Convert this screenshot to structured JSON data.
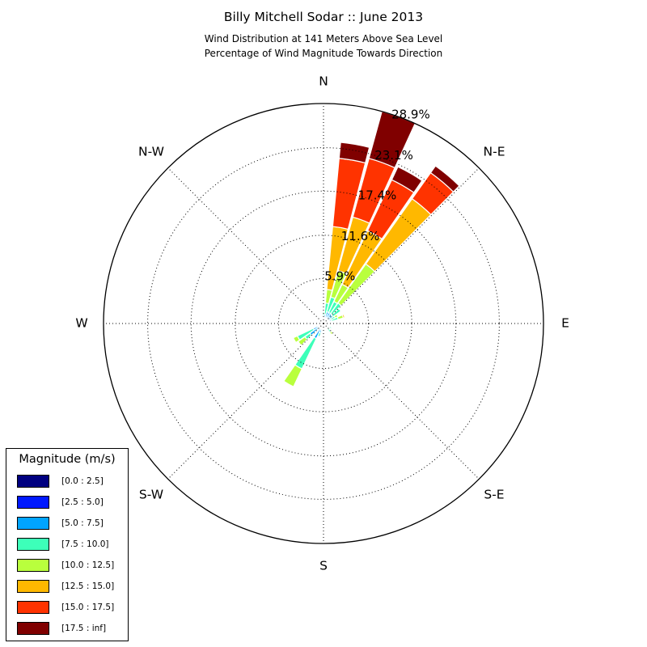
{
  "title": "Billy Mitchell Sodar :: June 2013",
  "subtitle_line1": "Wind Distribution at 141 Meters Above Sea Level",
  "subtitle_line2": "Percentage of Wind Magnitude Towards Direction",
  "chart_data": {
    "type": "windrose",
    "title": "Billy Mitchell Sodar :: June 2013",
    "subtitle": [
      "Wind Distribution at 141 Meters Above Sea Level",
      "Percentage of Wind Magnitude Towards Direction"
    ],
    "units": "percent",
    "directions": [
      "N",
      "N-E",
      "E",
      "S-E",
      "S",
      "S-W",
      "W",
      "N-W"
    ],
    "radial_ticks": [
      5.9,
      11.6,
      17.4,
      23.1,
      28.9
    ],
    "radial_tick_labels": [
      "5.9%",
      "11.6%",
      "17.4%",
      "23.1%",
      "28.9%"
    ],
    "rmax": 28.9,
    "legend_title": "Magnitude (m/s)",
    "legend_position": "lower-left",
    "bins": [
      {
        "label": "[0.0 : 2.5]",
        "color": "#000080"
      },
      {
        "label": "[2.5 : 5.0]",
        "color": "#0019ff"
      },
      {
        "label": "[5.0 : 7.5]",
        "color": "#00a4ff"
      },
      {
        "label": "[7.5 : 10.0]",
        "color": "#3dffb9"
      },
      {
        "label": "[10.0 : 12.5]",
        "color": "#b9ff3d"
      },
      {
        "label": "[12.5 : 15.0]",
        "color": "#ffb800"
      },
      {
        "label": "[15.0 : 17.5]",
        "color": "#ff3300"
      },
      {
        "label": "[17.5 : inf]",
        "color": "#800000"
      }
    ],
    "sectors": [
      {
        "direction_deg": 0,
        "cumulative": [
          0.2,
          0.5,
          0.9,
          1.5
        ]
      },
      {
        "direction_deg": 10,
        "cumulative": [
          0.2,
          0.5,
          1.2,
          2.7,
          4.5,
          12.8,
          21.8,
          23.9
        ]
      },
      {
        "direction_deg": 20,
        "cumulative": [
          0.3,
          0.6,
          1.6,
          3.6,
          7.2,
          14.5,
          22.5,
          28.9
        ]
      },
      {
        "direction_deg": 30,
        "cumulative": [
          0.2,
          0.6,
          1.6,
          3.2,
          5.7,
          13.5,
          20.9,
          22.8
        ]
      },
      {
        "direction_deg": 40,
        "cumulative": [
          0.2,
          0.6,
          1.6,
          3.3,
          9.6,
          20.1,
          24.3,
          25.4
        ]
      },
      {
        "direction_deg": 50,
        "cumulative": [
          0.2,
          0.6,
          1.5,
          2.8
        ]
      },
      {
        "direction_deg": 60,
        "cumulative": [
          0.2,
          0.5,
          1.1,
          1.7,
          2.1
        ]
      },
      {
        "direction_deg": 70,
        "cumulative": [
          0.2,
          0.5,
          1.1,
          2.0,
          2.7,
          2.9
        ]
      },
      {
        "direction_deg": 80,
        "cumulative": [
          0.2,
          0.4,
          0.9
        ]
      },
      {
        "direction_deg": 90,
        "cumulative": [
          0.2,
          0.3,
          0.6
        ]
      },
      {
        "direction_deg": 120,
        "cumulative": [
          0.2,
          0.4,
          0.9,
          1.2
        ]
      },
      {
        "direction_deg": 140,
        "cumulative": [
          0.2,
          0.4,
          0.8,
          1.4,
          1.8
        ]
      },
      {
        "direction_deg": 170,
        "cumulative": [
          0.2,
          0.4,
          0.7
        ]
      },
      {
        "direction_deg": 200,
        "cumulative": [
          0.2,
          0.5,
          1.3,
          1.8
        ]
      },
      {
        "direction_deg": 210,
        "cumulative": [
          0.2,
          0.8,
          2.2,
          6.6,
          9.2
        ]
      },
      {
        "direction_deg": 230,
        "cumulative": [
          0.2,
          0.6,
          2.2,
          3.0,
          4.1
        ]
      },
      {
        "direction_deg": 240,
        "cumulative": [
          0.2,
          0.6,
          1.5,
          3.8,
          4.4
        ]
      },
      {
        "direction_deg": 260,
        "cumulative": [
          0.2,
          0.4,
          0.8
        ]
      },
      {
        "direction_deg": 290,
        "cumulative": [
          0.2,
          0.4,
          0.7
        ]
      },
      {
        "direction_deg": 340,
        "cumulative": [
          0.2,
          0.3,
          0.6,
          0.8
        ]
      }
    ]
  }
}
